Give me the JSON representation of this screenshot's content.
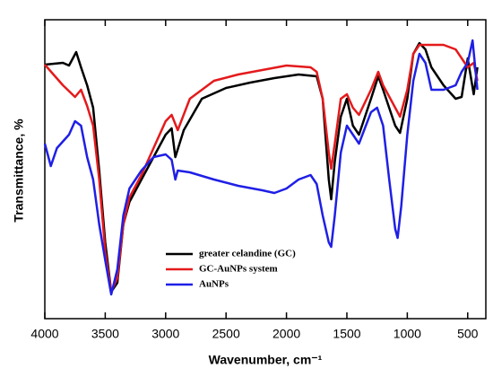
{
  "chart_data": {
    "type": "line",
    "xlabel": "Wavenumber, cm⁻¹",
    "ylabel": "Transmittance, %",
    "xlim": [
      4000,
      350
    ],
    "xticks": [
      4000,
      3500,
      3000,
      2500,
      2000,
      1500,
      1000,
      500
    ],
    "ylim": [
      0,
      333
    ],
    "legend": "bottom-center",
    "series": [
      {
        "name": "greater celandine (GC)",
        "color": "#000000",
        "x": [
          4000,
          3850,
          3800,
          3740,
          3700,
          3650,
          3600,
          3550,
          3500,
          3450,
          3400,
          3350,
          3300,
          3200,
          3100,
          3000,
          2950,
          2920,
          2850,
          2700,
          2500,
          2300,
          2100,
          1900,
          1750,
          1700,
          1650,
          1630,
          1600,
          1550,
          1500,
          1450,
          1400,
          1300,
          1240,
          1200,
          1100,
          1060,
          1000,
          950,
          900,
          850,
          800,
          700,
          600,
          550,
          500,
          450,
          420
        ],
        "values": [
          283,
          285,
          282,
          297,
          280,
          260,
          235,
          165,
          85,
          30,
          40,
          105,
          130,
          155,
          180,
          205,
          212,
          180,
          210,
          245,
          257,
          263,
          268,
          272,
          270,
          245,
          155,
          133,
          175,
          225,
          245,
          215,
          205,
          245,
          270,
          255,
          215,
          207,
          245,
          295,
          307,
          300,
          280,
          260,
          245,
          247,
          290,
          250,
          280
        ]
      },
      {
        "name": "GC-AuNPs system",
        "color": "#e41a1c",
        "x": [
          4000,
          3850,
          3750,
          3700,
          3650,
          3600,
          3550,
          3500,
          3450,
          3400,
          3350,
          3300,
          3200,
          3100,
          3000,
          2950,
          2900,
          2800,
          2600,
          2400,
          2200,
          2000,
          1800,
          1750,
          1700,
          1650,
          1630,
          1600,
          1550,
          1500,
          1450,
          1400,
          1300,
          1240,
          1200,
          1100,
          1060,
          1000,
          950,
          900,
          800,
          700,
          600,
          500,
          450,
          420
        ],
        "values": [
          283,
          260,
          247,
          255,
          237,
          215,
          155,
          75,
          30,
          45,
          105,
          135,
          160,
          190,
          220,
          227,
          210,
          245,
          265,
          272,
          277,
          282,
          280,
          275,
          245,
          185,
          167,
          195,
          245,
          250,
          235,
          227,
          255,
          275,
          260,
          235,
          225,
          255,
          295,
          305,
          305,
          305,
          300,
          280,
          285,
          265
        ]
      },
      {
        "name": "AuNPs",
        "color": "#1f1fe6",
        "x": [
          4000,
          3950,
          3900,
          3800,
          3750,
          3700,
          3650,
          3600,
          3550,
          3500,
          3450,
          3400,
          3350,
          3300,
          3200,
          3100,
          3000,
          2950,
          2920,
          2900,
          2800,
          2600,
          2400,
          2200,
          2100,
          2000,
          1900,
          1800,
          1750,
          1700,
          1650,
          1630,
          1600,
          1550,
          1500,
          1450,
          1400,
          1300,
          1250,
          1200,
          1150,
          1100,
          1080,
          1050,
          1000,
          950,
          900,
          850,
          800,
          700,
          600,
          550,
          500,
          460,
          420
        ],
        "values": [
          195,
          170,
          190,
          205,
          220,
          215,
          180,
          155,
          105,
          65,
          27,
          55,
          115,
          145,
          165,
          180,
          183,
          177,
          155,
          165,
          163,
          155,
          148,
          143,
          140,
          145,
          155,
          160,
          150,
          115,
          85,
          80,
          115,
          185,
          215,
          205,
          195,
          230,
          235,
          215,
          155,
          100,
          90,
          125,
          205,
          265,
          295,
          285,
          255,
          255,
          260,
          275,
          285,
          310,
          255
        ]
      }
    ]
  }
}
